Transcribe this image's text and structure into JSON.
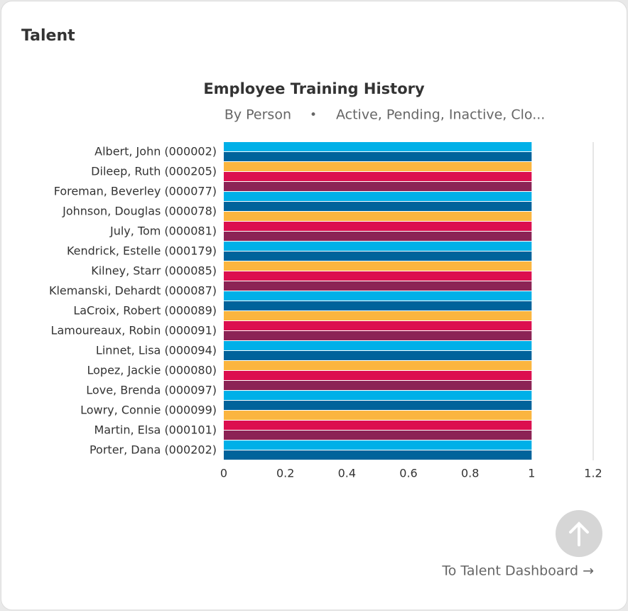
{
  "card": {
    "title": "Talent",
    "link": "To Talent Dashboard →"
  },
  "chart_data": {
    "type": "bar",
    "orientation": "horizontal",
    "title": "Employee Training History",
    "subtitle": [
      "By Person",
      "•",
      "Active, Pending, Inactive, Clo..."
    ],
    "categories": [
      "Albert, John (000002)",
      "Dileep, Ruth (000205)",
      "Foreman, Beverley (000077)",
      "Johnson, Douglas (000078)",
      "July, Tom (000081)",
      "Kendrick, Estelle (000179)",
      "Kilney, Starr (000085)",
      "Klemanski, Dehardt (000087)",
      "LaCroix, Robert (000089)",
      "Lamoureaux, Robin (000091)",
      "Linnet, Lisa (000094)",
      "Lopez, Jackie (000080)",
      "Love, Brenda (000097)",
      "Lowry, Connie (000099)",
      "Martin, Elsa (000101)",
      "Porter, Dana (000202)"
    ],
    "values": [
      [
        1,
        1
      ],
      [
        1,
        1
      ],
      [
        1,
        1
      ],
      [
        1,
        1
      ],
      [
        1,
        1
      ],
      [
        1,
        1
      ],
      [
        1,
        1
      ],
      [
        1,
        1
      ],
      [
        1,
        1
      ],
      [
        1,
        1
      ],
      [
        1,
        1
      ],
      [
        1,
        1
      ],
      [
        1,
        1
      ],
      [
        1,
        1
      ],
      [
        1,
        1
      ],
      [
        1,
        1
      ]
    ],
    "colors": [
      "#00b0e8",
      "#00639b",
      "#fbb53f",
      "#dc0f4f",
      "#8c2355"
    ],
    "xlim": [
      0,
      1.2
    ],
    "xticks": [
      0,
      0.2,
      0.4,
      0.6,
      0.8,
      1,
      1.2
    ]
  }
}
